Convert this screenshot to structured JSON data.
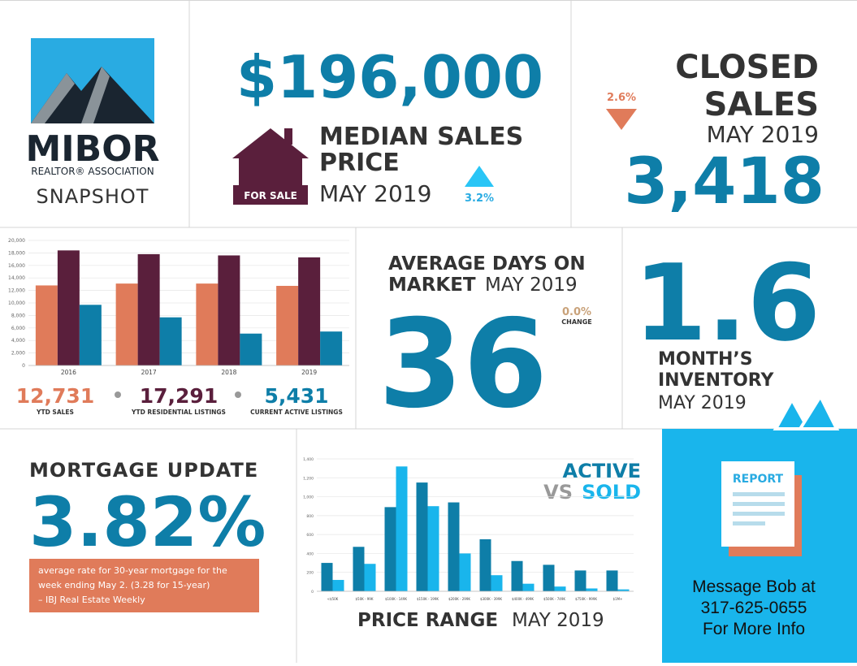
{
  "logo": {
    "name": "MIBOR",
    "org": "REALTOR® ASSOCIATION",
    "subtitle": "SNAPSHOT"
  },
  "median": {
    "price": "$196,000",
    "label_1": "MEDIAN SALES",
    "label_2": "PRICE",
    "sign": "FOR SALE",
    "period": "MAY 2019",
    "change": "3.2%"
  },
  "closed": {
    "label_1": "CLOSED",
    "label_2": "SALES",
    "period": "MAY 2019",
    "value": "3,418",
    "change": "2.6%"
  },
  "days": {
    "label_1": "AVERAGE DAYS ON",
    "label_2": "MARKET",
    "period": "MAY 2019",
    "value": "36",
    "change": "0.0%",
    "change_label": "CHANGE"
  },
  "inventory": {
    "value": "1.6",
    "label_1": "MONTH’S",
    "label_2": "INVENTORY",
    "period": "MAY 2019"
  },
  "mortgage": {
    "title": "MORTGAGE UPDATE",
    "rate": "3.82%",
    "note_1": "average rate for 30-year mortgage for the",
    "note_2": "week ending May 2. (3.28 for 15-year)",
    "note_3": "– IBJ Real Estate Weekly"
  },
  "contact": {
    "icon": "REPORT",
    "line_1": "Message Bob at",
    "line_2": "317-625-0655",
    "line_3": "For More Info"
  },
  "chart_data": [
    {
      "type": "bar",
      "categories": [
        "2016",
        "2017",
        "2018",
        "2019"
      ],
      "series": [
        {
          "name": "YTD SALES",
          "color": "#e07b5a",
          "values": [
            12800,
            13100,
            13100,
            12731
          ],
          "value_labels": [
            null,
            null,
            null,
            "12,731"
          ]
        },
        {
          "name": "YTD RESIDENTIAL LISTINGS",
          "color": "#5a1f3c",
          "values": [
            18400,
            17800,
            17600,
            17291
          ],
          "value_labels": [
            null,
            null,
            null,
            "17,291"
          ]
        },
        {
          "name": "CURRENT ACTIVE LISTINGS",
          "color": "#0e7ea8",
          "values": [
            9700,
            7700,
            5100,
            5431
          ],
          "value_labels": [
            null,
            null,
            null,
            "5,431"
          ]
        }
      ],
      "ylim": [
        0,
        20000
      ],
      "yticks": [
        0,
        {
          "value": 2000,
          "label": "2,000"
        },
        {
          "value": 4000,
          "label": "4,000"
        },
        {
          "value": 6000,
          "label": "6,000"
        },
        {
          "value": 8000,
          "label": "8,000"
        },
        {
          "value": 10000,
          "label": "10,000"
        },
        {
          "value": 12000,
          "label": "12,000"
        },
        {
          "value": 14000,
          "label": "14,000"
        },
        {
          "value": 16000,
          "label": "16,000"
        },
        {
          "value": 18000,
          "label": "18,000"
        },
        {
          "value": 20000,
          "label": "20,000"
        }
      ],
      "grid": true
    },
    {
      "type": "bar",
      "title_vs": "VS",
      "xlabel": "PRICE RANGE",
      "xlabel_period": "MAY 2019",
      "categories": [
        "<$50K",
        "$50K - 99K",
        "$100K - 149K",
        "$150K - 199K",
        "$200K - 299K",
        "$300K - 399K",
        "$400K - 499K",
        "$500K - 749K",
        "$750K - 999K",
        "$1M+"
      ],
      "series": [
        {
          "name": "ACTIVE",
          "color": "#0e7ea8",
          "values": [
            300,
            470,
            890,
            1150,
            940,
            550,
            320,
            280,
            220,
            220
          ]
        },
        {
          "name": "SOLD",
          "color": "#19b5ec",
          "values": [
            120,
            290,
            1320,
            900,
            400,
            170,
            80,
            50,
            30,
            20
          ]
        }
      ],
      "ylim": [
        0,
        1400
      ],
      "yticks": [
        0,
        200,
        400,
        600,
        800,
        {
          "value": 1000,
          "label": "1,000"
        },
        {
          "value": 1200,
          "label": "1,200"
        },
        {
          "value": 1400,
          "label": "1,400"
        }
      ],
      "grid": true
    }
  ]
}
